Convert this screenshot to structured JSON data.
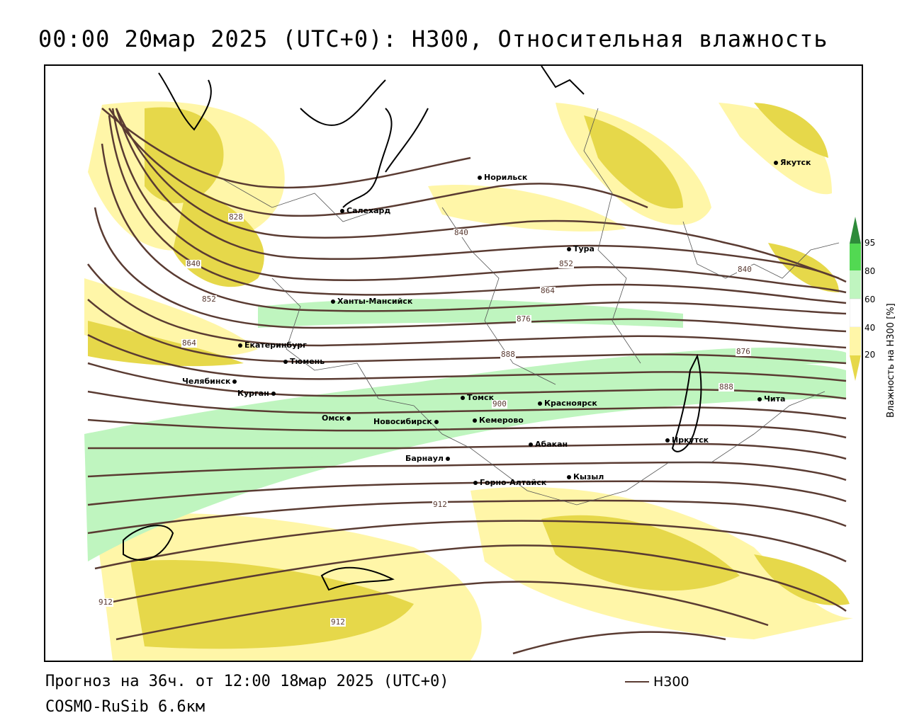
{
  "title": "00:00 20мар 2025 (UTC+0): H300, Относительная влажность",
  "footer": {
    "forecast": "Прогноз на 36ч. от 12:00 18мар 2025 (UTC+0)",
    "model": "COSMO-RuSib 6.6км"
  },
  "legend": {
    "label": "H300",
    "color": "#5a3b32"
  },
  "colorbar": {
    "title": "Влажность на H300 [%]",
    "ticks": [
      "95",
      "80",
      "60",
      "40",
      "20"
    ],
    "colors": {
      "95": "#2e8b3a",
      "80": "#52d952",
      "60": "#bff5bf",
      "40": "#ffffff",
      "20": "#fff6a8",
      "10": "#e6d84a",
      "0": "#c7b42a"
    }
  },
  "cities": [
    {
      "name": "Якутск"
    },
    {
      "name": "Норильск"
    },
    {
      "name": "Салехард"
    },
    {
      "name": "Тура"
    },
    {
      "name": "Ханты-Мансийск"
    },
    {
      "name": "Екатеринбург"
    },
    {
      "name": "Тюмень"
    },
    {
      "name": "Челябинск"
    },
    {
      "name": "Курган"
    },
    {
      "name": "Омск"
    },
    {
      "name": "Новосибирск"
    },
    {
      "name": "Томск"
    },
    {
      "name": "Кемерово"
    },
    {
      "name": "Красноярск"
    },
    {
      "name": "Абакан"
    },
    {
      "name": "Барнаул"
    },
    {
      "name": "Горно-Алтайск"
    },
    {
      "name": "Кызыл"
    },
    {
      "name": "Иркутск"
    },
    {
      "name": "Чита"
    }
  ],
  "contour_labels": [
    "828",
    "840",
    "852",
    "864",
    "876",
    "888",
    "900",
    "912",
    "840",
    "852",
    "864",
    "876",
    "888",
    "840",
    "912",
    "912"
  ]
}
